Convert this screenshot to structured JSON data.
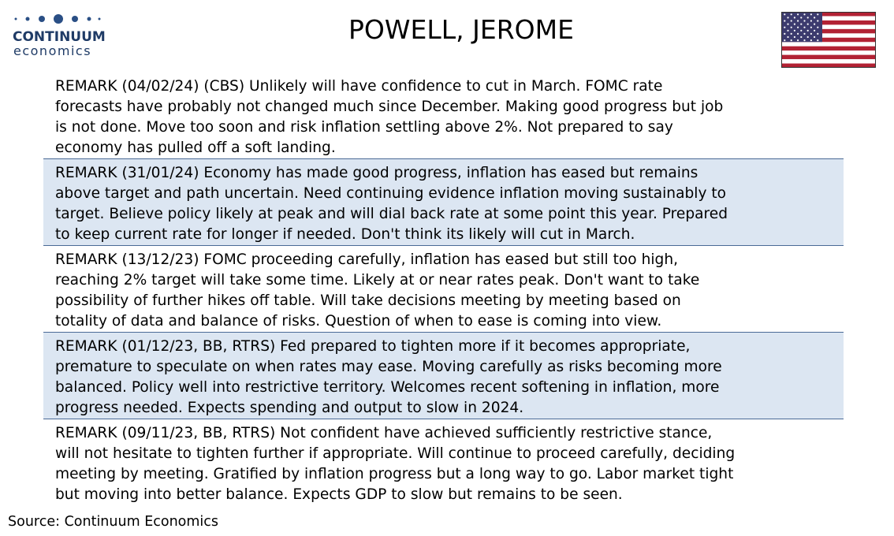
{
  "logo": {
    "name": "CONTINUUM",
    "tagline": "economics"
  },
  "header": {
    "title": "POWELL, JEROME"
  },
  "remarks": [
    [
      "REMARK (04/02/24) (CBS) Unlikely will have confidence to cut in March. FOMC rate",
      "forecasts have probably not changed much since December. Making good progress but job",
      "is not done. Move too soon and risk inflation settling above 2%. Not prepared to say",
      "economy has pulled off a soft landing."
    ],
    [
      "REMARK (31/01/24) Economy has made good progress, inflation has eased but remains",
      "above target and path uncertain. Need continuing evidence inflation moving sustainably to",
      "target. Believe policy likely at peak and will dial back rate at some point this year. Prepared",
      "to keep current rate for longer if needed. Don't think its likely will cut in  March."
    ],
    [
      "REMARK (13/12/23) FOMC proceeding carefully, inflation has eased but still too high,",
      "reaching 2% target will take some time. Likely at or near rates peak. Don't want to take",
      "possibility of further hikes off table. Will take decisions meeting by meeting based on",
      "totality of data and balance of risks. Question of when to ease is coming into view."
    ],
    [
      "REMARK (01/12/23, BB, RTRS) Fed prepared to tighten more if it becomes appropriate,",
      "premature to speculate on when rates may ease. Moving carefully as risks becoming more",
      "balanced. Policy well into restrictive territory.  Welcomes recent softening in inflation, more",
      "progress needed. Expects spending and output to slow in 2024."
    ],
    [
      "REMARK (09/11/23, BB, RTRS) Not confident have achieved sufficiently restrictive stance,",
      "will not hesitate to tighten further if appropriate. Will continue to proceed carefully, deciding",
      "meeting by meeting. Gratified by inflation progress but a long way to go. Labor market tight",
      "but moving into better balance. Expects GDP to slow but remains to be seen."
    ]
  ],
  "footer": {
    "source": "Source: Continuum Economics"
  }
}
